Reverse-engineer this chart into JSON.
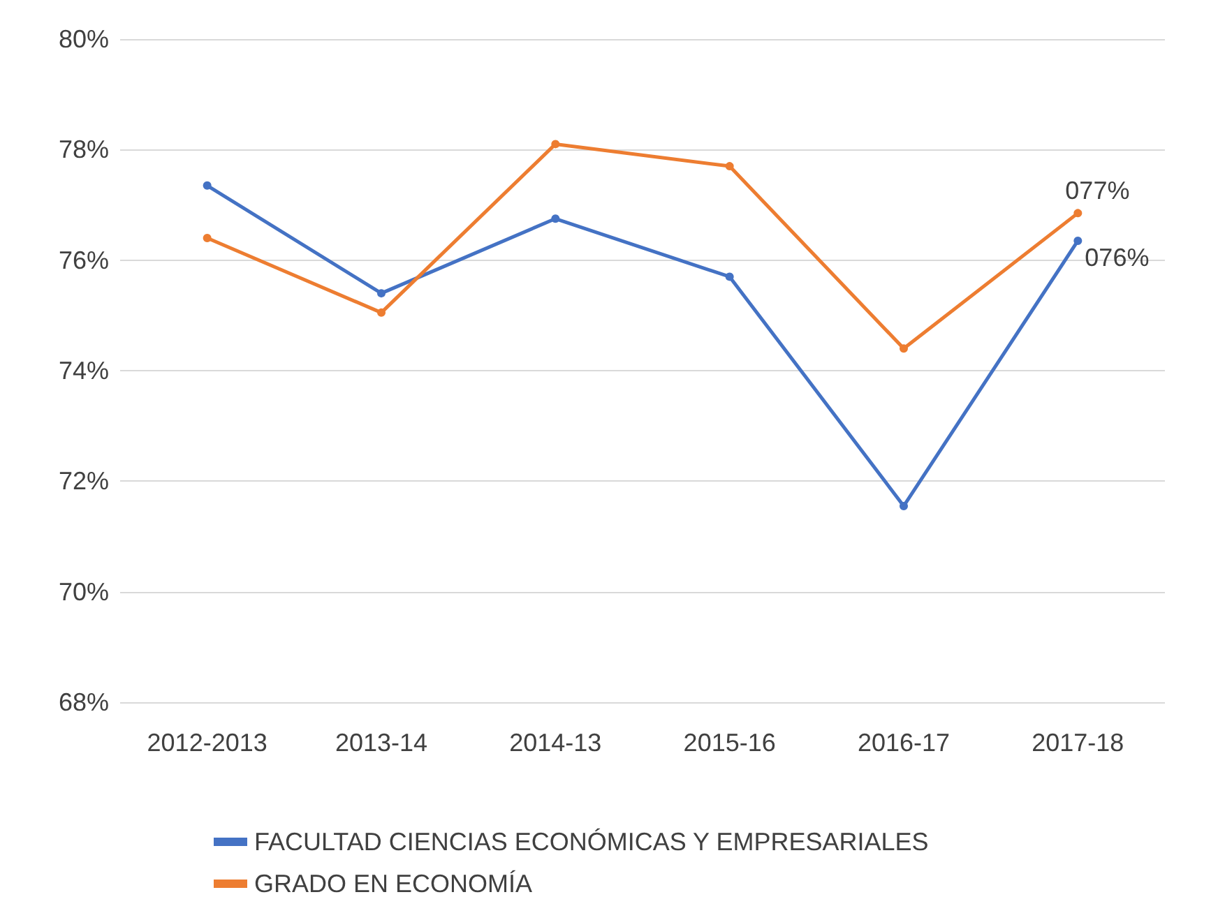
{
  "chart_data": {
    "type": "line",
    "categories": [
      "2012-2013",
      "2013-14",
      "2014-13",
      "2015-16",
      "2016-17",
      "2017-18"
    ],
    "series": [
      {
        "name": "FACULTAD CIENCIAS ECONÓMICAS Y EMPRESARIALES",
        "color": "#4472c4",
        "values": [
          77.35,
          75.4,
          76.75,
          75.7,
          71.55,
          76.35
        ],
        "value_labels": [
          null,
          null,
          null,
          null,
          null,
          "076%"
        ]
      },
      {
        "name": "GRADO EN ECONOMÍA",
        "color": "#ed7d31",
        "values": [
          76.4,
          75.05,
          78.1,
          77.7,
          74.4,
          76.85
        ],
        "value_labels": [
          null,
          null,
          null,
          null,
          null,
          "077%"
        ]
      }
    ],
    "ylim": [
      68,
      80
    ],
    "yticks": [
      {
        "value": 68,
        "label": "68%"
      },
      {
        "value": 70,
        "label": "70%"
      },
      {
        "value": 72,
        "label": "72%"
      },
      {
        "value": 74,
        "label": "74%"
      },
      {
        "value": 76,
        "label": "76%"
      },
      {
        "value": 78,
        "label": "78%"
      },
      {
        "value": 80,
        "label": "80%"
      }
    ],
    "grid": "y",
    "legend": "bottom",
    "marker": "circle",
    "line_style": "solid"
  }
}
